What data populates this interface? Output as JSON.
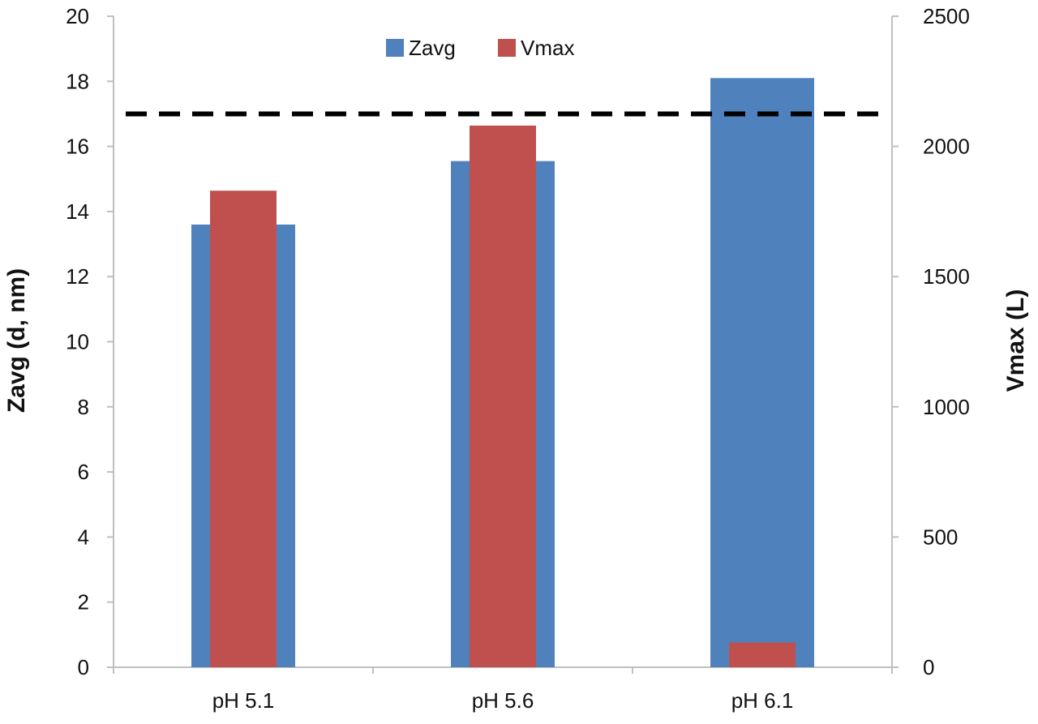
{
  "chart_data": {
    "type": "bar",
    "categories": [
      "pH 5.1",
      "pH 5.6",
      "pH 6.1"
    ],
    "series": [
      {
        "name": "Zavg",
        "axis": "left",
        "color": "#4f81bd",
        "values": [
          13.6,
          15.55,
          18.1
        ]
      },
      {
        "name": "Vmax",
        "axis": "right",
        "color": "#c0504d",
        "values": [
          1830,
          2080,
          95
        ]
      }
    ],
    "reference_line": {
      "axis": "left",
      "value": 17.0,
      "style": "dashed",
      "color": "#000000"
    },
    "ylabel": "Zavg (d, nm)",
    "ylabel_right": "Vmax (L)",
    "ylim": [
      0,
      20
    ],
    "ylim_right": [
      0,
      2500
    ],
    "yticks": [
      0,
      2,
      4,
      6,
      8,
      10,
      12,
      14,
      16,
      18,
      20
    ],
    "yticks_right": [
      0,
      500,
      1000,
      1500,
      2000,
      2500
    ],
    "grid": false,
    "legend": "top-center"
  }
}
